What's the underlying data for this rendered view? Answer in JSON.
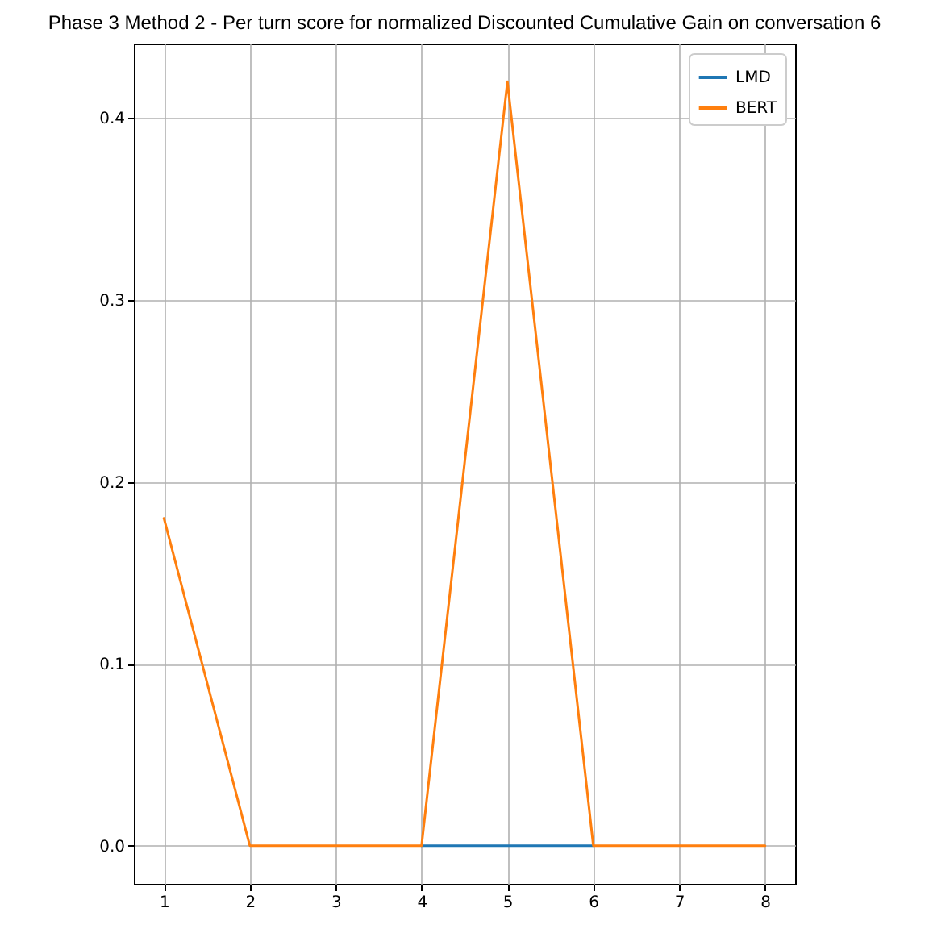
{
  "chart_data": {
    "type": "line",
    "title": "Phase 3 Method 2 - Per turn score for normalized Discounted Cumulative Gain on conversation 6",
    "x": [
      1,
      2,
      3,
      4,
      5,
      6,
      7,
      8
    ],
    "series": [
      {
        "name": "LMD",
        "color": "#1f77b4",
        "values": [
          null,
          null,
          null,
          0,
          0,
          0,
          null,
          null
        ]
      },
      {
        "name": "BERT",
        "color": "#ff7f0e",
        "values": [
          0.18,
          0,
          0,
          0,
          0.42,
          0,
          0,
          0
        ]
      }
    ],
    "xlim": [
      0.65,
      8.35
    ],
    "ylim": [
      -0.021,
      0.441
    ],
    "xticks": [
      1,
      2,
      3,
      4,
      5,
      6,
      7,
      8
    ],
    "yticks": [
      {
        "value": 0,
        "label": "0.0"
      },
      0.1,
      0.2,
      0.3,
      0.4
    ],
    "grid": true,
    "legend": "top right"
  }
}
